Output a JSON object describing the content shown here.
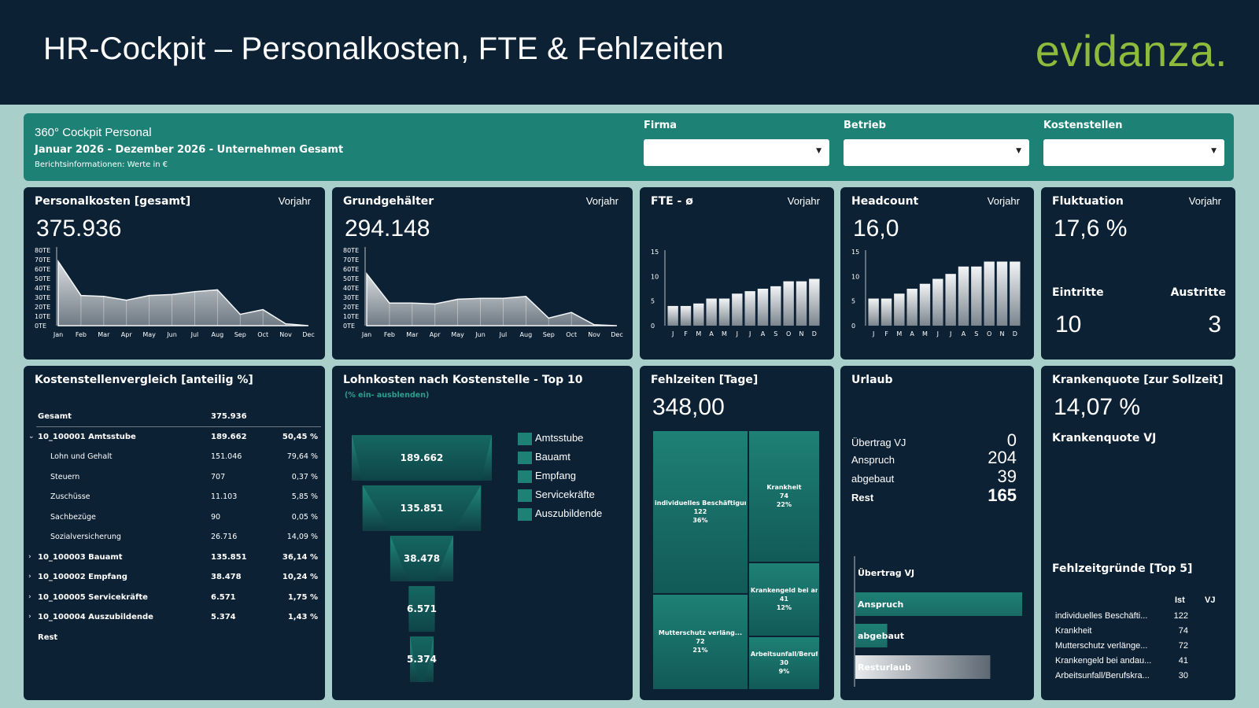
{
  "header": {
    "title": "HR-Cockpit – Personalkosten, FTE & Fehlzeiten",
    "logo": "evidanza",
    "logo_dot": "."
  },
  "filterbar": {
    "subtitle": "360° Cockpit Personal",
    "period": "Januar 2026 - Dezember 2026 - Unternehmen Gesamt",
    "info": "Berichtsinformationen: Werte in €",
    "filters": [
      {
        "label": "Firma",
        "value": ""
      },
      {
        "label": "Betrieb",
        "value": ""
      },
      {
        "label": "Kostenstellen",
        "value": ""
      }
    ]
  },
  "cards": {
    "personalkosten": {
      "title": "Personalkosten [gesamt]",
      "vj": "Vorjahr",
      "value": "375.936"
    },
    "grundgehaelter": {
      "title": "Grundgehälter",
      "vj": "Vorjahr",
      "value": "294.148"
    },
    "fte": {
      "title": "FTE - ø",
      "vj": "Vorjahr"
    },
    "headcount": {
      "title": "Headcount",
      "vj": "Vorjahr",
      "value": "16,0"
    },
    "fluktuation": {
      "title": "Fluktuation",
      "vj": "Vorjahr",
      "value": "17,6 %",
      "eintritte_label": "Eintritte",
      "austritte_label": "Austritte",
      "eintritte": "10",
      "austritte": "3"
    },
    "kostenstellen": {
      "title": "Kostenstellenvergleich [anteilig %]"
    },
    "lohnkosten": {
      "title": "Lohnkosten nach Kostenstelle - Top 10",
      "hint": "(% ein- ausblenden)"
    },
    "fehlzeiten": {
      "title": "Fehlzeiten  [Tage]",
      "value": "348,00"
    },
    "urlaub": {
      "title": "Urlaub"
    },
    "krankenquote": {
      "title": "Krankenquote [zur Sollzeit]",
      "value": "14,07 %",
      "vj_label": "Krankenquote VJ",
      "gruende_title": "Fehlzeitgründe [Top 5]"
    }
  },
  "cost_table": [
    {
      "name": "Gesamt",
      "value": "375.936",
      "pct": "",
      "type": "hdr"
    },
    {
      "name": "10_100001 Amtsstube",
      "value": "189.662",
      "pct": "50,45 %",
      "type": "bold",
      "exp": "⌄"
    },
    {
      "name": "Lohn und Gehalt",
      "value": "151.046",
      "pct": "79,64 %",
      "type": "sub"
    },
    {
      "name": "Steuern",
      "value": "707",
      "pct": "0,37 %",
      "type": "sub"
    },
    {
      "name": "Zuschüsse",
      "value": "11.103",
      "pct": "5,85 %",
      "type": "sub"
    },
    {
      "name": "Sachbezüge",
      "value": "90",
      "pct": "0,05 %",
      "type": "sub"
    },
    {
      "name": "Sozialversicherung",
      "value": "26.716",
      "pct": "14,09 %",
      "type": "sub"
    },
    {
      "name": "10_100003 Bauamt",
      "value": "135.851",
      "pct": "36,14 %",
      "type": "bold",
      "exp": "›"
    },
    {
      "name": "10_100002 Empfang",
      "value": "38.478",
      "pct": "10,24 %",
      "type": "bold",
      "exp": "›"
    },
    {
      "name": "10_100005 Servicekräfte",
      "value": "6.571",
      "pct": "1,75 %",
      "type": "bold",
      "exp": "›"
    },
    {
      "name": "10_100004 Auszubildende",
      "value": "5.374",
      "pct": "1,43 %",
      "type": "bold",
      "exp": "›"
    },
    {
      "name": "Rest",
      "value": "",
      "pct": "",
      "type": "bold"
    }
  ],
  "urlaub": {
    "rows": [
      {
        "label": "Übertrag VJ",
        "value": "0"
      },
      {
        "label": "Anspruch",
        "value": "204"
      },
      {
        "label": "abgebaut",
        "value": "39"
      },
      {
        "label": "Rest",
        "value": "165"
      }
    ],
    "bars": [
      {
        "label": "Übertrag VJ",
        "value": 0
      },
      {
        "label": "Anspruch",
        "value": 204
      },
      {
        "label": "abgebaut",
        "value": 39
      },
      {
        "label": "Resturlaub",
        "value": 165
      }
    ]
  },
  "fehlzeit_gruende": {
    "col_ist": "Ist",
    "col_vj": "VJ",
    "rows": [
      {
        "name": "individuelles Beschäfti...",
        "ist": "122"
      },
      {
        "name": "Krankheit",
        "ist": "74"
      },
      {
        "name": "Mutterschutz verlänge...",
        "ist": "72"
      },
      {
        "name": "Krankengeld bei andau...",
        "ist": "41"
      },
      {
        "name": "Arbeitsunfall/Berufskra...",
        "ist": "30"
      }
    ]
  },
  "chart_data": [
    {
      "id": "personalkosten",
      "type": "area",
      "categories": [
        "Jan",
        "Feb",
        "Mar",
        "Apr",
        "May",
        "Jun",
        "Jul",
        "Aug",
        "Sep",
        "Oct",
        "Nov",
        "Dec"
      ],
      "values": [
        68,
        32,
        31,
        27,
        32,
        33,
        36,
        38,
        12,
        17,
        2,
        null
      ],
      "ylim": [
        0,
        80
      ],
      "yticks": [
        "0TE",
        "10TE",
        "20TE",
        "30TE",
        "40TE",
        "50TE",
        "60TE",
        "70TE",
        "80TE"
      ]
    },
    {
      "id": "grundgehaelter",
      "type": "area",
      "categories": [
        "Jan",
        "Feb",
        "Mar",
        "Apr",
        "May",
        "Jun",
        "Jul",
        "Aug",
        "Sep",
        "Oct",
        "Nov",
        "Dec"
      ],
      "values": [
        55,
        24,
        24,
        23,
        28,
        29,
        29,
        31,
        8,
        14,
        1,
        null
      ],
      "ylim": [
        0,
        80
      ],
      "yticks": [
        "0TE",
        "10TE",
        "20TE",
        "30TE",
        "40TE",
        "50TE",
        "60TE",
        "70TE",
        "80TE"
      ]
    },
    {
      "id": "fte",
      "type": "bar",
      "categories": [
        "J",
        "F",
        "M",
        "A",
        "M",
        "J",
        "J",
        "A",
        "S",
        "O",
        "N",
        "D"
      ],
      "values": [
        4.0,
        4.0,
        4.5,
        5.5,
        5.5,
        6.5,
        7.0,
        7.5,
        8.0,
        9.0,
        9.0,
        9.5
      ],
      "ylim": [
        0,
        15
      ],
      "yticks": [
        "0",
        "5",
        "10",
        "15"
      ]
    },
    {
      "id": "headcount",
      "type": "bar",
      "categories": [
        "J",
        "F",
        "M",
        "A",
        "M",
        "J",
        "J",
        "A",
        "S",
        "O",
        "N",
        "D"
      ],
      "values": [
        5.5,
        5.5,
        6.5,
        7.5,
        8.5,
        9.5,
        10.5,
        12.0,
        12.0,
        13.0,
        13.0,
        13.0
      ],
      "ylim": [
        0,
        15
      ],
      "yticks": [
        "0",
        "5",
        "10",
        "15"
      ]
    },
    {
      "id": "lohnkosten",
      "type": "bar",
      "categories": [
        "Amtsstube",
        "Bauamt",
        "Empfang",
        "Servicekräfte",
        "Auszubildende"
      ],
      "values": [
        189662,
        135851,
        38478,
        6571,
        5374
      ],
      "labels": [
        "189.662",
        "135.851",
        "38.478",
        "6.571",
        "5.374"
      ]
    },
    {
      "id": "fehlzeiten",
      "type": "heatmap",
      "cells": [
        {
          "name": "individuelles Beschäftigun...",
          "value": 122,
          "label": "122",
          "pct": "36%"
        },
        {
          "name": "Krankheit",
          "value": 74,
          "label": "74",
          "pct": "22%"
        },
        {
          "name": "Mutterschutz verläng...",
          "value": 72,
          "label": "72",
          "pct": "21%"
        },
        {
          "name": "Krankengeld bei and...",
          "value": 41,
          "label": "41",
          "pct": "12%"
        },
        {
          "name": "Arbeitsunfall/Berufsk...",
          "value": 30,
          "label": "30",
          "pct": "9%"
        }
      ]
    }
  ],
  "colors": {
    "navy": "#0d2135",
    "teal": "#1e8176",
    "background": "#a9cfca",
    "logo": "#8dbb3c"
  }
}
